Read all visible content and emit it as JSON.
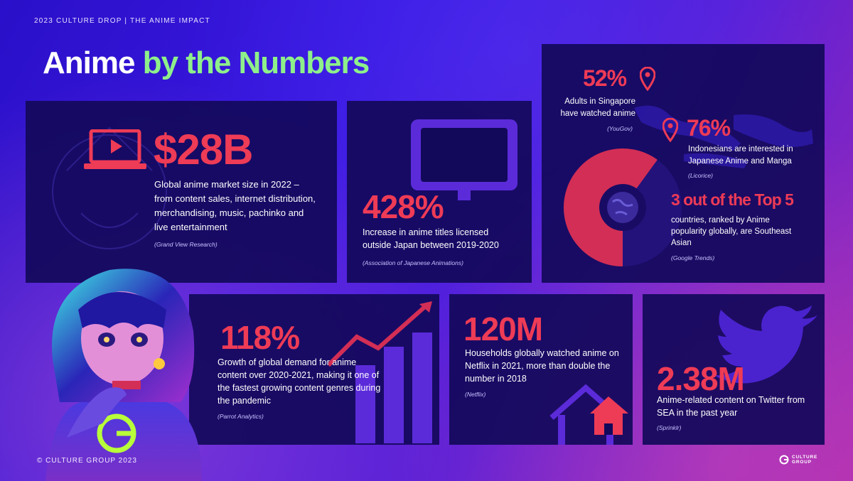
{
  "header": {
    "eyebrow": "2023 CULTURE DROP  |  THE ANIME IMPACT",
    "title_part1": "Anime",
    "title_part2": "by the Numbers"
  },
  "colors": {
    "accent_red": "#ee3b56",
    "accent_green": "#8ef08a",
    "card_bg": "#12095a"
  },
  "stats": {
    "market": {
      "value": "$28B",
      "description": "Global anime market size in 2022 – from content sales, internet distribution, merchandising, music, pachinko and live entertainment",
      "source": "(Grand View Research)",
      "icon": "laptop-play-icon"
    },
    "licensed": {
      "value": "428%",
      "description": "Increase in anime titles licensed outside Japan between 2019-2020",
      "source": "(Association of Japanese Animations)",
      "icon": "monitor-icon"
    },
    "singapore": {
      "value": "52%",
      "description": "Adults in Singapore have watched anime",
      "source": "(YouGov)",
      "icon": "location-pin-icon"
    },
    "indonesia": {
      "value": "76%",
      "description": "Indonesians are interested in Japanese Anime and Manga",
      "source": "(Licorice)",
      "icon": "location-pin-icon"
    },
    "top5": {
      "value": "3 out of the Top 5",
      "description": "countries, ranked by Anime popularity globally, are Southeast Asian",
      "source": "(Google Trends)",
      "share": 0.6,
      "icon": "globe-icon"
    },
    "growth": {
      "value": "118%",
      "description": "Growth of global demand for anime content over 2020-2021, making it one of the fastest growing content genres during the pandemic",
      "source": "(Parrot Analytics)",
      "icon": "bar-chart-trend-icon"
    },
    "netflix": {
      "value": "120M",
      "description": "Households globally watched anime on Netflix in 2021, more than double the number in 2018",
      "source": "(Netflix)",
      "icon": "house-icon"
    },
    "twitter": {
      "value": "2.38M",
      "description": "Anime-related content on Twitter from SEA in the past year",
      "source": "(Sprinklr)",
      "icon": "twitter-bird-icon"
    }
  },
  "footer": {
    "copyright": "© CULTURE GROUP 2023",
    "brand_line1": "CULTURE",
    "brand_line2": "GROUP"
  }
}
